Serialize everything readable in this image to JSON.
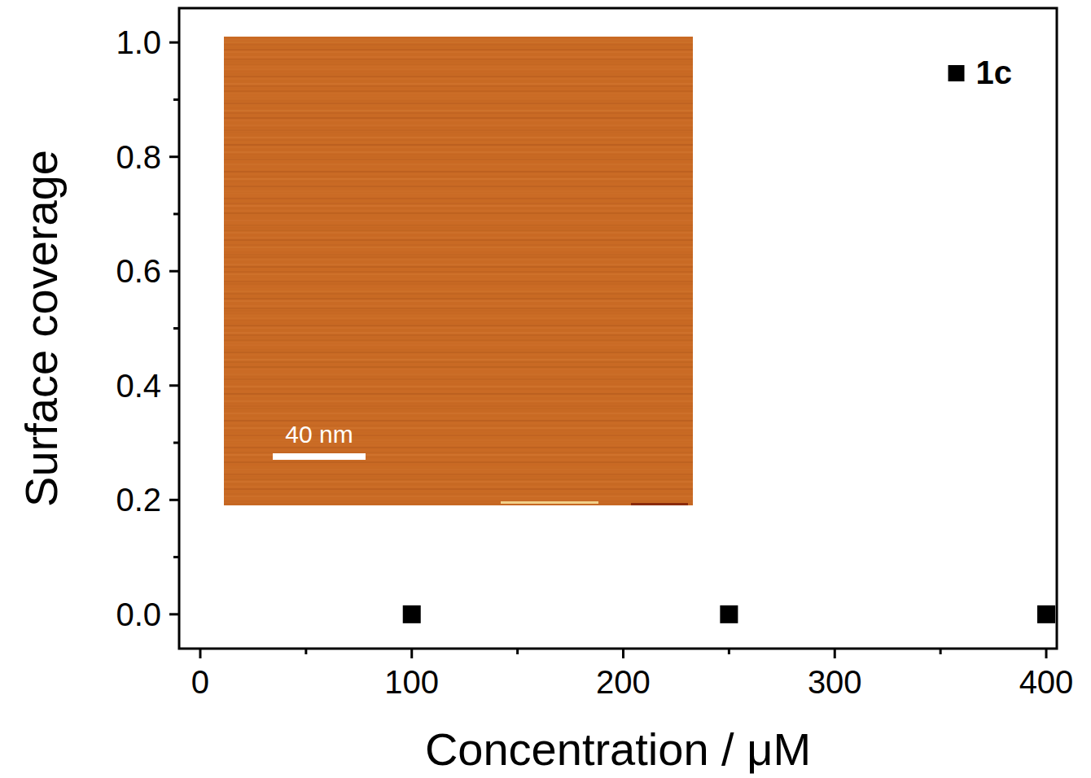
{
  "chart_data": {
    "type": "scatter",
    "x_label": "Concentration / μM",
    "y_label": "Surface coverage",
    "x": [
      100,
      250,
      400
    ],
    "series": [
      {
        "name": "1c",
        "color": "#000000",
        "marker": "square",
        "values": [
          0,
          0,
          0
        ]
      }
    ],
    "xlim": [
      -10,
      405
    ],
    "xticks": [
      0,
      100,
      200,
      300,
      400
    ],
    "ylim": [
      -0.06,
      1.06
    ],
    "yticks": [
      {
        "value": 0,
        "label": "0.0"
      },
      {
        "value": 0.2,
        "label": "0.2"
      },
      {
        "value": 0.4,
        "label": "0.4"
      },
      {
        "value": 0.6,
        "label": "0.6"
      },
      {
        "value": 0.8,
        "label": "0.8"
      },
      {
        "value": 1.0,
        "label": "1.0"
      }
    ],
    "legend": "upper right",
    "grid": false,
    "annotations": [
      "40 nm"
    ]
  }
}
